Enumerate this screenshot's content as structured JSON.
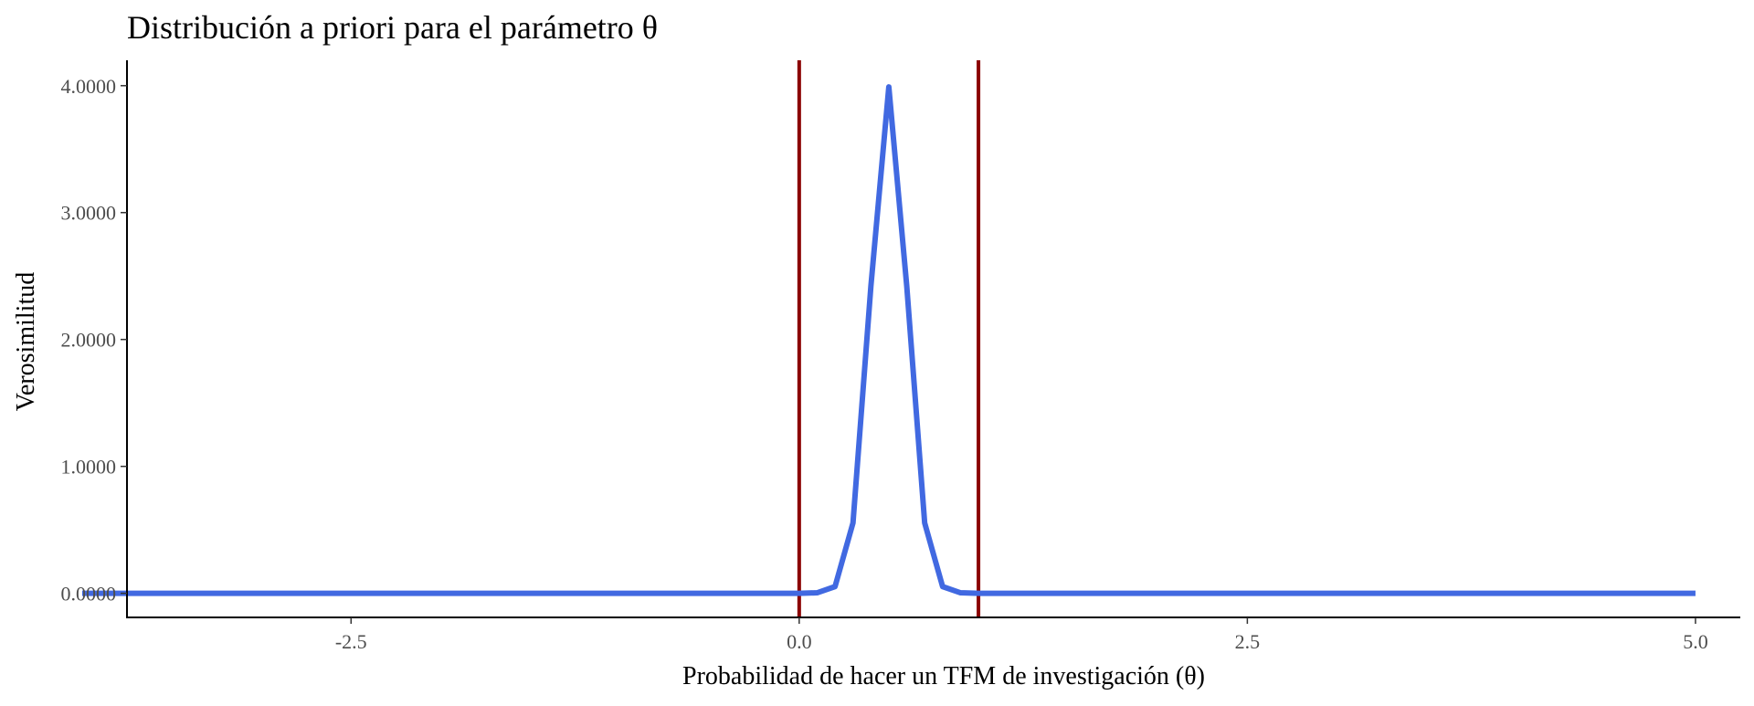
{
  "chart_data": {
    "type": "line",
    "title": "Distribución a priori para el parámetro θ",
    "xlabel": "Probabilidad de hacer un TFM de investigación (θ)",
    "ylabel": "Verosimilitud",
    "xlim": [
      -3.75,
      5.25
    ],
    "ylim": [
      -0.19,
      4.2
    ],
    "x_ticks": [
      -2.5,
      0.0,
      2.5,
      5.0
    ],
    "x_tick_labels": [
      "-2.5",
      "0.0",
      "2.5",
      "5.0"
    ],
    "y_ticks": [
      0,
      1,
      2,
      3,
      4
    ],
    "y_tick_labels": [
      "0.0000",
      "1.0000",
      "2.0000",
      "3.0000",
      "4.0000"
    ],
    "grid": false,
    "vlines": [
      0,
      1
    ],
    "vline_color": "#8b0000",
    "series": [
      {
        "color": "#4169e1",
        "x": [
          -4.0,
          0.0,
          0.1,
          0.2,
          0.3,
          0.4,
          0.5,
          0.6,
          0.7,
          0.8,
          0.9,
          1.0,
          5.0
        ],
        "y": [
          0.0,
          0.0,
          0.004,
          0.053,
          0.554,
          2.42,
          3.99,
          2.42,
          0.554,
          0.053,
          0.004,
          0.0,
          0.0
        ]
      }
    ]
  }
}
